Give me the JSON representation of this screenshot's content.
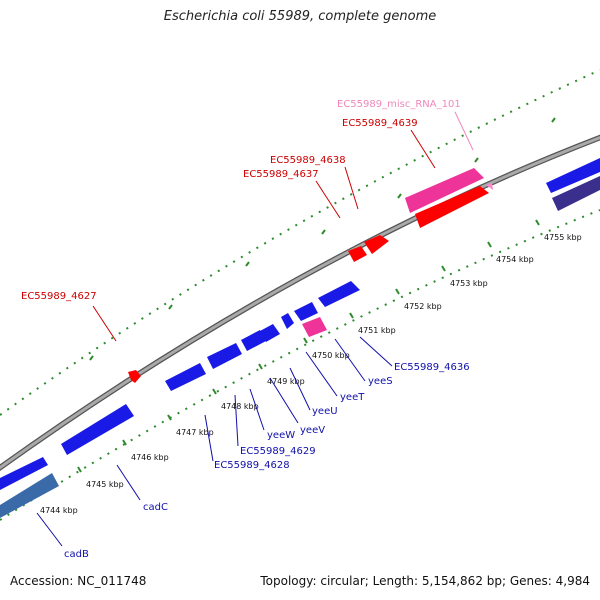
{
  "title": "Escherichia coli 55989, complete genome",
  "footer": {
    "accession": "Accession: NC_011748",
    "topology": "Topology: circular; Length: 5,154,862 bp; Genes: 4,984"
  },
  "colors": {
    "backbone": "#8a8a8a",
    "tick": "#2e8b2e",
    "cds_forward_label": "#cc0000",
    "cds_reverse_label": "#1010aa",
    "misc_rna_label": "#ee88bb"
  },
  "ticks": [
    {
      "label": "4744 kbp"
    },
    {
      "label": "4745 kbp"
    },
    {
      "label": "4746 kbp"
    },
    {
      "label": "4747 kbp"
    },
    {
      "label": "4748 kbp"
    },
    {
      "label": "4749 kbp"
    },
    {
      "label": "4750 kbp"
    },
    {
      "label": "4751 kbp"
    },
    {
      "label": "4752 kbp"
    },
    {
      "label": "4753 kbp"
    },
    {
      "label": "4754 kbp"
    },
    {
      "label": "4755 kbp"
    }
  ],
  "gene_labels": [
    {
      "name": "EC55989_misc_RNA_101",
      "strand": "misc"
    },
    {
      "name": "EC55989_4639",
      "strand": "forward"
    },
    {
      "name": "EC55989_4638",
      "strand": "forward"
    },
    {
      "name": "EC55989_4637",
      "strand": "forward"
    },
    {
      "name": "EC55989_4627",
      "strand": "forward"
    },
    {
      "name": "EC55989_4636",
      "strand": "reverse"
    },
    {
      "name": "yeeS",
      "strand": "reverse"
    },
    {
      "name": "yeeT",
      "strand": "reverse"
    },
    {
      "name": "yeeU",
      "strand": "reverse"
    },
    {
      "name": "yeeV",
      "strand": "reverse"
    },
    {
      "name": "yeeW",
      "strand": "reverse"
    },
    {
      "name": "EC55989_4629",
      "strand": "reverse"
    },
    {
      "name": "EC55989_4628",
      "strand": "reverse"
    },
    {
      "name": "cadC",
      "strand": "reverse"
    },
    {
      "name": "cadB",
      "strand": "reverse"
    }
  ]
}
